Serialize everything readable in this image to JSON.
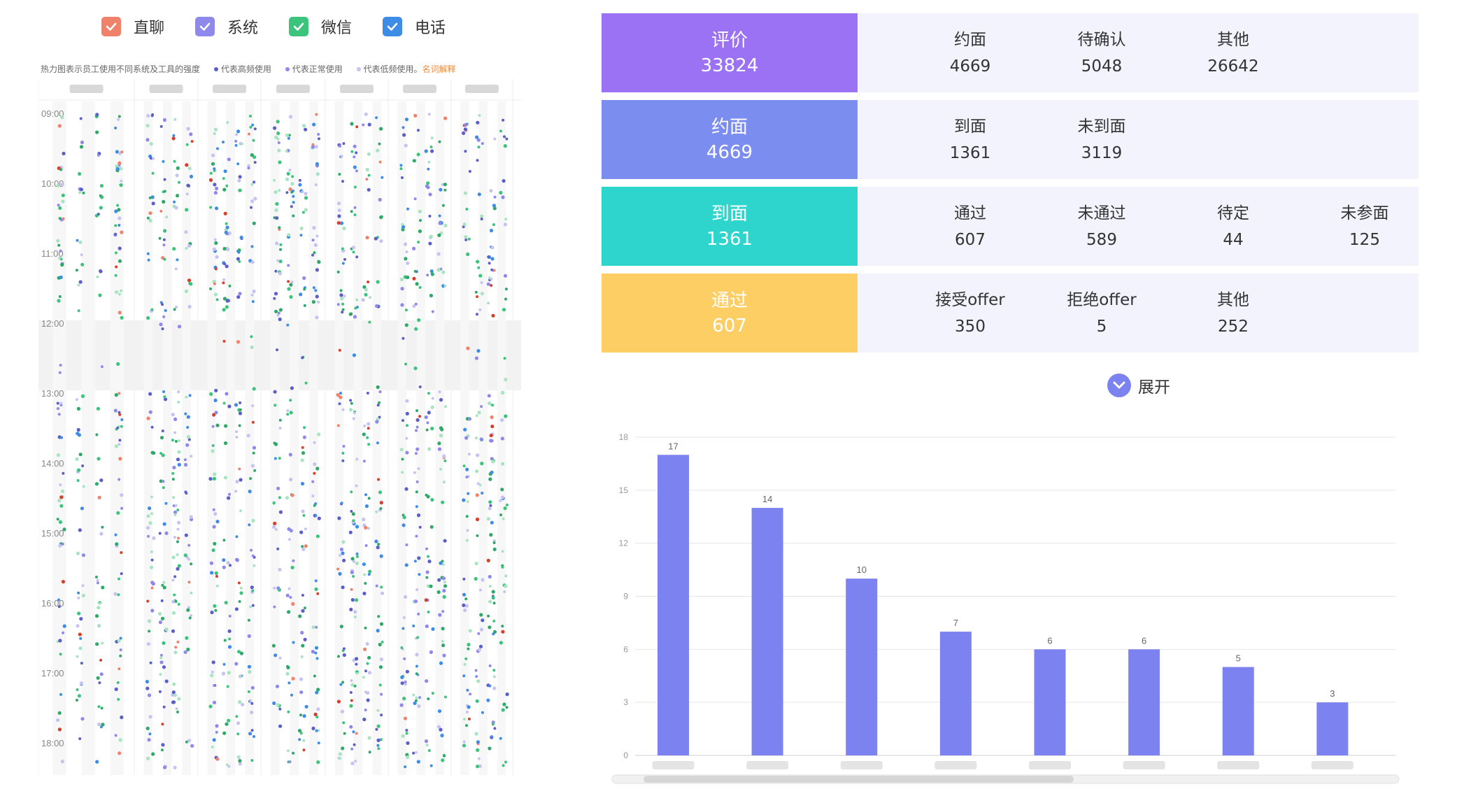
{
  "legend": [
    {
      "label": "直聊",
      "color": "#f0826a"
    },
    {
      "label": "系统",
      "color": "#8e89ea"
    },
    {
      "label": "微信",
      "color": "#3cc47c"
    },
    {
      "label": "电话",
      "color": "#3d8ce6"
    }
  ],
  "heatmap": {
    "note": "热力图表示员工使用不同系统及工具的强度",
    "levels": [
      "代表高频使用",
      "代表正常使用",
      "代表低频使用。"
    ],
    "link_label": "名词解释",
    "level_colors": [
      "#5b5fc7",
      "#8e89ea",
      "#c6c3f3"
    ],
    "time_labels": [
      "09:00",
      "10:00",
      "11:00",
      "12:00",
      "13:00",
      "14:00",
      "15:00",
      "16:00",
      "17:00",
      "18:00"
    ],
    "column_count": 7
  },
  "funnel": [
    {
      "title": "评价",
      "value": "33824",
      "color": "#9c72f4",
      "items": [
        {
          "label": "约面",
          "value": "4669"
        },
        {
          "label": "待确认",
          "value": "5048"
        },
        {
          "label": "其他",
          "value": "26642"
        }
      ]
    },
    {
      "title": "约面",
      "value": "4669",
      "color": "#7b8ef0",
      "items": [
        {
          "label": "到面",
          "value": "1361"
        },
        {
          "label": "未到面",
          "value": "3119"
        }
      ]
    },
    {
      "title": "到面",
      "value": "1361",
      "color": "#2ed5cc",
      "items": [
        {
          "label": "通过",
          "value": "607"
        },
        {
          "label": "未通过",
          "value": "589"
        },
        {
          "label": "待定",
          "value": "44"
        },
        {
          "label": "未参面",
          "value": "125"
        }
      ]
    },
    {
      "title": "通过",
      "value": "607",
      "color": "#fcce63",
      "items": [
        {
          "label": "接受offer",
          "value": "350"
        },
        {
          "label": "拒绝offer",
          "value": "5"
        },
        {
          "label": "其他",
          "value": "252"
        }
      ]
    }
  ],
  "expand_label": "展开",
  "chart_data": {
    "type": "bar",
    "categories": [
      "",
      "",
      "",
      "",
      "",
      "",
      "",
      ""
    ],
    "values": [
      17,
      14,
      10,
      7,
      6,
      6,
      5,
      3
    ],
    "yticks": [
      0,
      3,
      6,
      9,
      12,
      15,
      18
    ],
    "ylim": [
      0,
      18
    ],
    "bar_color": "#7c83f0",
    "grid": true
  }
}
